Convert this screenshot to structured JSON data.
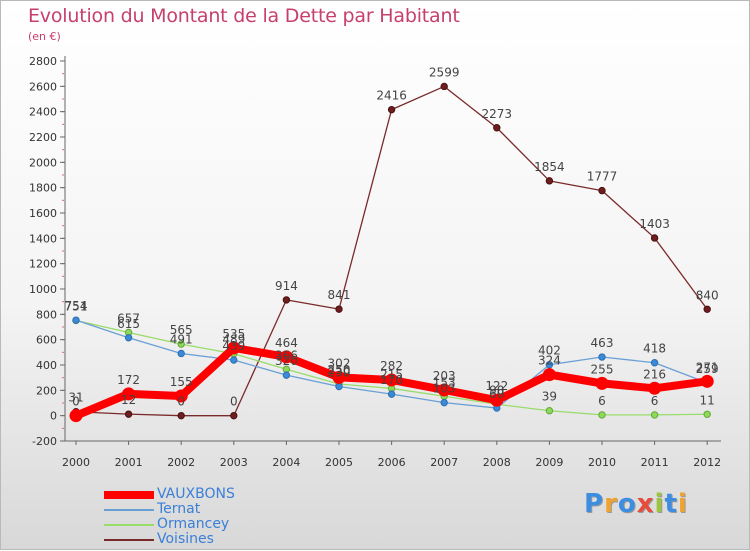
{
  "title": "Evolution du Montant de la Dette par Habitant",
  "subtitle": "(en €)",
  "logo": {
    "text": "Proxiti",
    "colors": [
      "#3d8ee0",
      "#f0a22e",
      "#3d8ee0",
      "#e84c3d",
      "#9cc43c",
      "#3d8ee0",
      "#f0a22e"
    ]
  },
  "chart_data": {
    "type": "line",
    "x": [
      "2000",
      "2001",
      "2002",
      "2003",
      "2004",
      "2005",
      "2006",
      "2007",
      "2008",
      "2009",
      "2010",
      "2011",
      "2012"
    ],
    "y_ticks": [
      "-200",
      "0",
      "200",
      "400",
      "600",
      "800",
      "1000",
      "1200",
      "1400",
      "1600",
      "1800",
      "2000",
      "2200",
      "2400",
      "2600",
      "2800"
    ],
    "ylim": [
      -200,
      2800
    ],
    "grid": false,
    "legend_position": "bottom-left",
    "series": [
      {
        "name": "VAUXBONS",
        "color": "#ff0000",
        "values": [
          0,
          172,
          155,
          535,
          464,
          302,
          282,
          203,
          122,
          324,
          255,
          216,
          271
        ],
        "labels": [
          "0",
          "172",
          "155",
          "535",
          "464",
          "302",
          "282",
          "203",
          "122",
          "324",
          "255",
          "216",
          "271"
        ]
      },
      {
        "name": "Ternat",
        "color": "#6a9fd6",
        "values": [
          754,
          615,
          491,
          439,
          320,
          230,
          170,
          103,
          60,
          402,
          463,
          418,
          259
        ],
        "labels": [
          "754",
          "615",
          "491",
          "439",
          "320",
          "230",
          "170",
          "103",
          "60",
          "402",
          "463",
          "418",
          "259"
        ]
      },
      {
        "name": "Ormancey",
        "color": "#98dc6a",
        "values": [
          751,
          657,
          565,
          489,
          366,
          250,
          215,
          153,
          90,
          39,
          6,
          6,
          11
        ],
        "labels": [
          "751",
          "657",
          "565",
          "489",
          "366",
          "250",
          "215",
          "153",
          "90",
          "39",
          "6",
          "6",
          "11"
        ]
      },
      {
        "name": "Voisines",
        "color": "#7a2a2a",
        "values": [
          31,
          12,
          0,
          0,
          914,
          841,
          2416,
          2599,
          2273,
          1854,
          1777,
          1403,
          840
        ],
        "labels": [
          "31",
          "12",
          "0",
          "0",
          "914",
          "841",
          "2416",
          "2599",
          "2273",
          "1854",
          "1777",
          "1403",
          "840"
        ]
      }
    ]
  }
}
